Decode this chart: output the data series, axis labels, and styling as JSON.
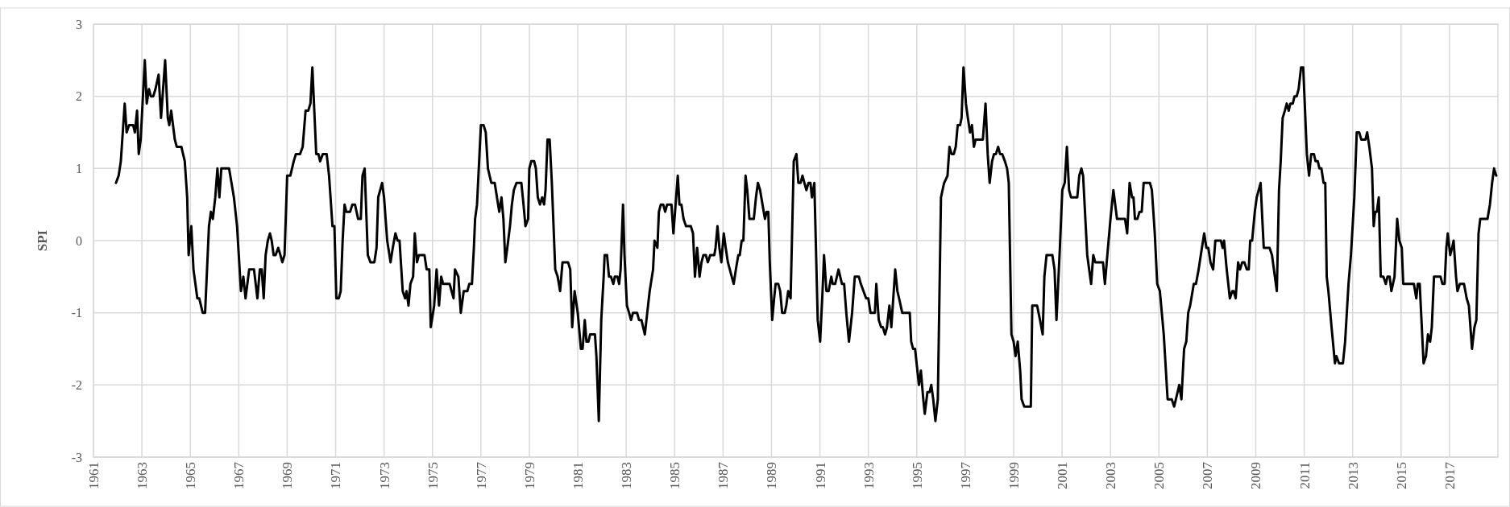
{
  "chart_data": {
    "type": "line",
    "ylabel": "SPI",
    "xlim": [
      1961,
      2019
    ],
    "xticks": [
      1961,
      1963,
      1965,
      1967,
      1969,
      1971,
      1973,
      1975,
      1977,
      1979,
      1981,
      1983,
      1985,
      1987,
      1989,
      1991,
      1993,
      1995,
      1997,
      1999,
      2001,
      2003,
      2005,
      2007,
      2009,
      2011,
      2013,
      2015,
      2017
    ],
    "ylim": [
      -3,
      3
    ],
    "yticks": [
      -3,
      -2,
      -1,
      0,
      1,
      2,
      3
    ],
    "grid": true,
    "marker": "none",
    "line_style": "solid",
    "series": [
      {
        "color": "#000000",
        "x": [
          1961.93,
          1962.04,
          1962.13,
          1962.29,
          1962.37,
          1962.47,
          1962.64,
          1962.71,
          1962.8,
          1962.87,
          1962.95,
          1963.12,
          1963.2,
          1963.29,
          1963.37,
          1963.47,
          1963.56,
          1963.69,
          1963.79,
          1963.96,
          1964.07,
          1964.13,
          1964.21,
          1964.36,
          1964.44,
          1964.63,
          1964.77,
          1964.87,
          1964.93,
          1965.04,
          1965.13,
          1965.29,
          1965.37,
          1965.51,
          1965.61,
          1965.77,
          1965.85,
          1965.93,
          1966.03,
          1966.12,
          1966.2,
          1966.28,
          1966.6,
          1966.8,
          1966.93,
          1967.09,
          1967.19,
          1967.28,
          1967.43,
          1967.63,
          1967.77,
          1967.87,
          1967.95,
          1968.03,
          1968.11,
          1968.2,
          1968.29,
          1968.36,
          1968.44,
          1968.52,
          1968.63,
          1968.72,
          1968.8,
          1968.89,
          1969.0,
          1969.13,
          1969.27,
          1969.36,
          1969.53,
          1969.64,
          1969.76,
          1969.87,
          1969.96,
          1970.04,
          1970.2,
          1970.29,
          1970.36,
          1970.47,
          1970.63,
          1970.73,
          1970.87,
          1970.95,
          1971.03,
          1971.13,
          1971.21,
          1971.29,
          1971.37,
          1971.44,
          1971.6,
          1971.69,
          1971.8,
          1971.93,
          1972.04,
          1972.11,
          1972.2,
          1972.33,
          1972.44,
          1972.6,
          1972.69,
          1972.76,
          1972.92,
          1973.0,
          1973.13,
          1973.27,
          1973.36,
          1973.47,
          1973.56,
          1973.64,
          1973.77,
          1973.87,
          1973.93,
          1974.01,
          1974.09,
          1974.2,
          1974.27,
          1974.36,
          1974.44,
          1974.67,
          1974.76,
          1974.87,
          1974.93,
          1975.07,
          1975.17,
          1975.27,
          1975.36,
          1975.44,
          1975.71,
          1975.87,
          1975.93,
          1976.07,
          1976.17,
          1976.29,
          1976.44,
          1976.52,
          1976.63,
          1976.71,
          1976.76,
          1976.84,
          1977.0,
          1977.11,
          1977.2,
          1977.29,
          1977.43,
          1977.57,
          1977.71,
          1977.76,
          1977.85,
          1977.93,
          1978.01,
          1978.09,
          1978.2,
          1978.28,
          1978.36,
          1978.47,
          1978.67,
          1978.76,
          1978.84,
          1978.95,
          1979.0,
          1979.08,
          1979.2,
          1979.27,
          1979.35,
          1979.44,
          1979.53,
          1979.61,
          1979.67,
          1979.75,
          1979.84,
          1979.93,
          1980.07,
          1980.17,
          1980.27,
          1980.37,
          1980.6,
          1980.69,
          1980.77,
          1980.87,
          1981.0,
          1981.13,
          1981.2,
          1981.29,
          1981.36,
          1981.44,
          1981.51,
          1981.71,
          1981.77,
          1981.87,
          1981.97,
          1982.07,
          1982.11,
          1982.21,
          1982.29,
          1982.37,
          1982.47,
          1982.53,
          1982.64,
          1982.71,
          1982.77,
          1982.87,
          1982.93,
          1983.03,
          1983.12,
          1983.2,
          1983.28,
          1983.45,
          1983.53,
          1983.63,
          1983.77,
          1983.87,
          1983.97,
          1984.11,
          1984.17,
          1984.29,
          1984.35,
          1984.43,
          1984.53,
          1984.61,
          1984.69,
          1984.87,
          1984.95,
          1985.04,
          1985.13,
          1985.2,
          1985.28,
          1985.37,
          1985.47,
          1985.67,
          1985.76,
          1985.84,
          1985.93,
          1986.03,
          1986.11,
          1986.19,
          1986.29,
          1986.37,
          1986.47,
          1986.64,
          1986.69,
          1986.77,
          1986.85,
          1986.93,
          1987.03,
          1987.11,
          1987.2,
          1987.28,
          1987.44,
          1987.53,
          1987.63,
          1987.69,
          1987.77,
          1987.84,
          1987.93,
          1988.0,
          1988.09,
          1988.27,
          1988.36,
          1988.44,
          1988.53,
          1988.63,
          1988.73,
          1988.8,
          1988.87,
          1988.93,
          1989.03,
          1989.11,
          1989.17,
          1989.28,
          1989.36,
          1989.44,
          1989.55,
          1989.61,
          1989.69,
          1989.79,
          1989.92,
          1990.03,
          1990.11,
          1990.2,
          1990.28,
          1990.36,
          1990.44,
          1990.53,
          1990.61,
          1990.67,
          1990.77,
          1990.91,
          1991.01,
          1991.11,
          1991.17,
          1991.27,
          1991.36,
          1991.47,
          1991.53,
          1991.63,
          1991.77,
          1991.91,
          1992.0,
          1992.09,
          1992.2,
          1992.33,
          1992.44,
          1992.61,
          1992.69,
          1992.8,
          1992.91,
          1993.0,
          1993.09,
          1993.27,
          1993.33,
          1993.43,
          1993.53,
          1993.6,
          1993.69,
          1993.77,
          1993.87,
          1993.95,
          1994.11,
          1994.2,
          1994.27,
          1994.4,
          1994.53,
          1994.71,
          1994.77,
          1994.85,
          1994.93,
          1995.09,
          1995.17,
          1995.27,
          1995.33,
          1995.44,
          1995.53,
          1995.6,
          1995.68,
          1995.77,
          1995.87,
          1996.0,
          1996.13,
          1996.27,
          1996.35,
          1996.44,
          1996.53,
          1996.61,
          1996.69,
          1996.79,
          1996.85,
          1996.93,
          1997.03,
          1997.11,
          1997.2,
          1997.28,
          1997.36,
          1997.43,
          1997.73,
          1997.84,
          1997.93,
          1998.01,
          1998.11,
          1998.19,
          1998.27,
          1998.36,
          1998.44,
          1998.53,
          1998.64,
          1998.73,
          1998.8,
          1998.91,
          1999.0,
          1999.08,
          1999.17,
          1999.27,
          1999.33,
          1999.44,
          1999.71,
          1999.77,
          1999.97,
          2000.09,
          2000.2,
          2000.27,
          2000.36,
          2000.6,
          2000.69,
          2000.77,
          2000.91,
          2001.01,
          2001.11,
          2001.2,
          2001.29,
          2001.37,
          2001.63,
          2001.71,
          2001.8,
          2001.87,
          2002.04,
          2002.2,
          2002.29,
          2002.37,
          2002.69,
          2002.77,
          2002.87,
          2003.0,
          2003.12,
          2003.27,
          2003.6,
          2003.69,
          2003.79,
          2003.89,
          2003.95,
          2004.01,
          2004.11,
          2004.2,
          2004.29,
          2004.37,
          2004.63,
          2004.71,
          2004.83,
          2004.93,
          2005.04,
          2005.2,
          2005.36,
          2005.53,
          2005.63,
          2005.84,
          2005.93,
          2006.04,
          2006.13,
          2006.21,
          2006.29,
          2006.44,
          2006.53,
          2006.64,
          2006.73,
          2006.87,
          2006.96,
          2007.04,
          2007.13,
          2007.24,
          2007.33,
          2007.56,
          2007.63,
          2007.69,
          2007.8,
          2007.93,
          2008.03,
          2008.09,
          2008.17,
          2008.27,
          2008.35,
          2008.44,
          2008.53,
          2008.63,
          2008.71,
          2008.77,
          2008.85,
          2008.96,
          2009.04,
          2009.2,
          2009.27,
          2009.33,
          2009.57,
          2009.67,
          2009.87,
          2009.96,
          2010.03,
          2010.11,
          2010.2,
          2010.28,
          2010.36,
          2010.43,
          2010.53,
          2010.6,
          2010.69,
          2010.77,
          2010.87,
          2010.96,
          2011.11,
          2011.2,
          2011.29,
          2011.4,
          2011.47,
          2011.56,
          2011.63,
          2011.71,
          2011.8,
          2011.87,
          2011.93,
          2012.0,
          2012.13,
          2012.27,
          2012.33,
          2012.44,
          2012.6,
          2012.69,
          2012.83,
          2012.93,
          2013.07,
          2013.17,
          2013.27,
          2013.36,
          2013.53,
          2013.6,
          2013.69,
          2013.8,
          2013.87,
          2013.93,
          2014.0,
          2014.08,
          2014.16,
          2014.27,
          2014.37,
          2014.44,
          2014.53,
          2014.6,
          2014.73,
          2014.84,
          2014.93,
          2015.03,
          2015.09,
          2015.2,
          2015.53,
          2015.63,
          2015.69,
          2015.77,
          2015.93,
          2016.03,
          2016.11,
          2016.2,
          2016.27,
          2016.36,
          2016.63,
          2016.71,
          2016.8,
          2016.87,
          2016.93,
          2017.03,
          2017.11,
          2017.17,
          2017.27,
          2017.33,
          2017.43,
          2017.6,
          2017.71,
          2017.8,
          2017.93,
          2018.03,
          2018.11,
          2018.2,
          2018.27,
          2018.57,
          2018.67,
          2018.76,
          2018.84,
          2018.93
        ],
        "values": [
          0.8,
          0.9,
          1.1,
          1.9,
          1.5,
          1.6,
          1.6,
          1.5,
          1.8,
          1.2,
          1.4,
          2.5,
          1.9,
          2.1,
          2.0,
          2.0,
          2.1,
          2.3,
          1.7,
          2.5,
          1.7,
          1.6,
          1.8,
          1.4,
          1.3,
          1.3,
          1.1,
          0.6,
          -0.2,
          0.2,
          -0.4,
          -0.8,
          -0.8,
          -1.0,
          -1.0,
          0.2,
          0.4,
          0.3,
          0.6,
          1.0,
          0.6,
          1.0,
          1.0,
          0.6,
          0.2,
          -0.7,
          -0.5,
          -0.8,
          -0.4,
          -0.4,
          -0.8,
          -0.4,
          -0.4,
          -0.8,
          -0.2,
          0.0,
          0.1,
          0.0,
          -0.2,
          -0.2,
          -0.1,
          -0.2,
          -0.3,
          -0.2,
          0.9,
          0.9,
          1.1,
          1.2,
          1.2,
          1.3,
          1.8,
          1.8,
          1.9,
          2.4,
          1.2,
          1.2,
          1.1,
          1.2,
          1.2,
          0.9,
          0.2,
          0.2,
          -0.8,
          -0.8,
          -0.7,
          0.0,
          0.5,
          0.4,
          0.4,
          0.5,
          0.5,
          0.3,
          0.3,
          0.9,
          1.0,
          -0.2,
          -0.3,
          -0.3,
          -0.1,
          0.6,
          0.8,
          0.6,
          0.0,
          -0.3,
          -0.1,
          0.1,
          0.0,
          0.0,
          -0.7,
          -0.8,
          -0.7,
          -0.9,
          -0.6,
          -0.5,
          0.1,
          -0.3,
          -0.2,
          -0.2,
          -0.4,
          -0.4,
          -1.2,
          -0.9,
          -0.4,
          -0.9,
          -0.5,
          -0.6,
          -0.6,
          -0.8,
          -0.4,
          -0.5,
          -1.0,
          -0.7,
          -0.7,
          -0.6,
          -0.6,
          -0.1,
          0.3,
          0.5,
          1.6,
          1.6,
          1.5,
          1.0,
          0.8,
          0.8,
          0.5,
          0.4,
          0.6,
          0.3,
          -0.3,
          -0.1,
          0.2,
          0.5,
          0.7,
          0.8,
          0.8,
          0.5,
          0.2,
          0.3,
          1.0,
          1.1,
          1.1,
          1.0,
          0.6,
          0.5,
          0.6,
          0.5,
          0.7,
          1.4,
          1.4,
          0.8,
          -0.4,
          -0.5,
          -0.7,
          -0.3,
          -0.3,
          -0.4,
          -1.2,
          -0.7,
          -1.0,
          -1.5,
          -1.5,
          -1.1,
          -1.4,
          -1.4,
          -1.3,
          -1.3,
          -1.6,
          -2.5,
          -1.1,
          -0.5,
          -0.2,
          -0.2,
          -0.5,
          -0.5,
          -0.6,
          -0.5,
          -0.5,
          -0.6,
          -0.4,
          0.5,
          -0.2,
          -0.9,
          -1.0,
          -1.1,
          -1.0,
          -1.0,
          -1.1,
          -1.1,
          -1.3,
          -1.0,
          -0.7,
          -0.4,
          0.0,
          -0.1,
          0.4,
          0.5,
          0.5,
          0.4,
          0.5,
          0.5,
          0.1,
          0.5,
          0.9,
          0.5,
          0.5,
          0.3,
          0.2,
          0.2,
          0.1,
          -0.5,
          -0.1,
          -0.5,
          -0.3,
          -0.2,
          -0.2,
          -0.3,
          -0.2,
          -0.2,
          -0.1,
          0.2,
          -0.1,
          -0.3,
          0.1,
          -0.1,
          -0.3,
          -0.4,
          -0.6,
          -0.4,
          -0.2,
          -0.2,
          0.0,
          0.0,
          0.9,
          0.7,
          0.3,
          0.3,
          0.6,
          0.8,
          0.7,
          0.5,
          0.3,
          0.4,
          0.4,
          -0.3,
          -1.1,
          -0.8,
          -0.6,
          -0.6,
          -0.7,
          -1.0,
          -1.0,
          -0.9,
          -0.7,
          -0.8,
          1.1,
          1.2,
          0.8,
          0.8,
          0.9,
          0.8,
          0.7,
          0.8,
          0.8,
          0.6,
          0.8,
          -1.1,
          -1.4,
          -0.7,
          -0.2,
          -0.7,
          -0.7,
          -0.5,
          -0.6,
          -0.6,
          -0.4,
          -0.6,
          -0.6,
          -1.0,
          -1.4,
          -1.0,
          -0.5,
          -0.5,
          -0.6,
          -0.7,
          -0.8,
          -0.8,
          -1.0,
          -1.0,
          -0.6,
          -1.1,
          -1.2,
          -1.2,
          -1.3,
          -1.2,
          -0.9,
          -1.2,
          -0.4,
          -0.7,
          -0.8,
          -1.0,
          -1.0,
          -1.0,
          -1.4,
          -1.5,
          -1.5,
          -2.0,
          -1.8,
          -2.2,
          -2.4,
          -2.1,
          -2.1,
          -2.0,
          -2.2,
          -2.5,
          -2.2,
          0.6,
          0.8,
          0.9,
          1.3,
          1.2,
          1.2,
          1.3,
          1.6,
          1.6,
          1.7,
          2.4,
          1.9,
          1.7,
          1.5,
          1.6,
          1.3,
          1.4,
          1.4,
          1.9,
          1.2,
          0.8,
          1.1,
          1.2,
          1.2,
          1.3,
          1.2,
          1.2,
          1.1,
          1.0,
          0.8,
          -1.3,
          -1.4,
          -1.6,
          -1.4,
          -1.8,
          -2.2,
          -2.3,
          -2.3,
          -0.9,
          -0.9,
          -1.1,
          -1.3,
          -0.5,
          -0.2,
          -0.2,
          -0.4,
          -1.1,
          -0.1,
          0.7,
          0.8,
          1.3,
          0.7,
          0.6,
          0.6,
          0.9,
          1.0,
          0.9,
          -0.2,
          -0.6,
          -0.2,
          -0.3,
          -0.3,
          -0.6,
          -0.2,
          0.3,
          0.7,
          0.3,
          0.3,
          0.1,
          0.8,
          0.6,
          0.6,
          0.3,
          0.3,
          0.4,
          0.4,
          0.8,
          0.8,
          0.7,
          0.1,
          -0.6,
          -0.7,
          -1.3,
          -2.2,
          -2.2,
          -2.3,
          -2.0,
          -2.2,
          -1.5,
          -1.4,
          -1.0,
          -0.9,
          -0.6,
          -0.6,
          -0.4,
          -0.2,
          0.1,
          -0.1,
          -0.1,
          -0.3,
          -0.4,
          0.0,
          0.0,
          -0.1,
          0.0,
          -0.4,
          -0.8,
          -0.7,
          -0.7,
          -0.8,
          -0.3,
          -0.4,
          -0.3,
          -0.3,
          -0.4,
          -0.4,
          0.0,
          0.0,
          0.4,
          0.6,
          0.8,
          0.3,
          -0.1,
          -0.1,
          -0.2,
          -0.7,
          0.7,
          1.1,
          1.7,
          1.8,
          1.9,
          1.8,
          1.9,
          1.9,
          2.0,
          2.0,
          2.1,
          2.4,
          2.4,
          1.2,
          0.9,
          1.2,
          1.2,
          1.1,
          1.1,
          1.0,
          1.0,
          0.8,
          0.8,
          -0.5,
          -0.7,
          -1.2,
          -1.7,
          -1.6,
          -1.7,
          -1.7,
          -1.4,
          -0.6,
          -0.2,
          0.6,
          1.5,
          1.5,
          1.4,
          1.4,
          1.5,
          1.3,
          1.0,
          0.2,
          0.4,
          0.4,
          0.6,
          -0.5,
          -0.5,
          -0.6,
          -0.5,
          -0.5,
          -0.7,
          -0.5,
          0.3,
          0.0,
          -0.1,
          -0.6,
          -0.6,
          -0.6,
          -0.8,
          -0.6,
          -0.6,
          -1.7,
          -1.6,
          -1.3,
          -1.4,
          -1.2,
          -0.5,
          -0.5,
          -0.6,
          -0.6,
          -0.1,
          0.1,
          -0.2,
          -0.1,
          0.0,
          -0.5,
          -0.7,
          -0.6,
          -0.6,
          -0.8,
          -0.9,
          -1.5,
          -1.2,
          -1.1,
          0.1,
          0.3,
          0.3,
          0.5,
          0.8,
          1.0,
          0.9
        ]
      }
    ]
  }
}
